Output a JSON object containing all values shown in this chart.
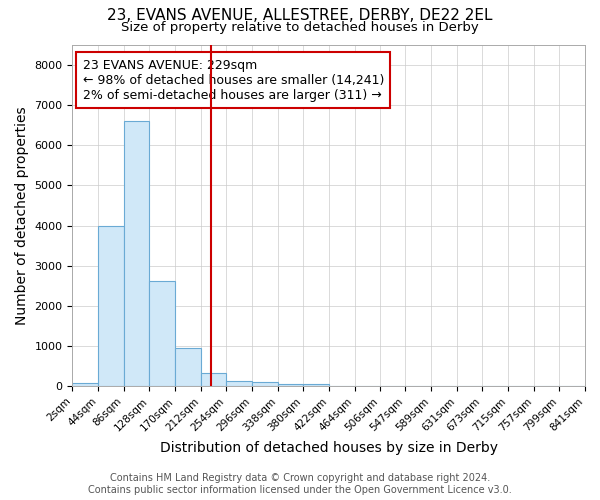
{
  "title_line1": "23, EVANS AVENUE, ALLESTREE, DERBY, DE22 2EL",
  "title_line2": "Size of property relative to detached houses in Derby",
  "xlabel": "Distribution of detached houses by size in Derby",
  "ylabel": "Number of detached properties",
  "bar_left_edges": [
    2,
    44,
    86,
    128,
    170,
    212,
    254,
    296,
    338,
    380,
    422,
    464,
    506,
    547,
    589,
    631,
    673,
    715,
    757,
    799
  ],
  "bar_heights": [
    80,
    4000,
    6600,
    2620,
    960,
    330,
    130,
    100,
    60,
    55,
    0,
    0,
    0,
    0,
    0,
    0,
    0,
    0,
    0,
    0
  ],
  "bin_width": 42,
  "bar_color": "#d0e8f8",
  "bar_edge_color": "#6aaad4",
  "grid_color": "#cccccc",
  "background_color": "#ffffff",
  "property_size": 229,
  "vline_color": "#cc0000",
  "annotation_text_line1": "23 EVANS AVENUE: 229sqm",
  "annotation_text_line2": "← 98% of detached houses are smaller (14,241)",
  "annotation_text_line3": "2% of semi-detached houses are larger (311) →",
  "annotation_box_color": "#cc0000",
  "annotation_bg": "#ffffff",
  "ylim": [
    0,
    8500
  ],
  "xlim": [
    2,
    841
  ],
  "tick_labels": [
    "2sqm",
    "44sqm",
    "86sqm",
    "128sqm",
    "170sqm",
    "212sqm",
    "254sqm",
    "296sqm",
    "338sqm",
    "380sqm",
    "422sqm",
    "464sqm",
    "506sqm",
    "547sqm",
    "589sqm",
    "631sqm",
    "673sqm",
    "715sqm",
    "757sqm",
    "799sqm",
    "841sqm"
  ],
  "tick_positions": [
    2,
    44,
    86,
    128,
    170,
    212,
    254,
    296,
    338,
    380,
    422,
    464,
    506,
    547,
    589,
    631,
    673,
    715,
    757,
    799,
    841
  ],
  "footer_text": "Contains HM Land Registry data © Crown copyright and database right 2024.\nContains public sector information licensed under the Open Government Licence v3.0.",
  "title_fontsize": 11,
  "subtitle_fontsize": 9.5,
  "axis_label_fontsize": 10,
  "tick_fontsize": 7.5,
  "annotation_fontsize": 9,
  "footer_fontsize": 7
}
